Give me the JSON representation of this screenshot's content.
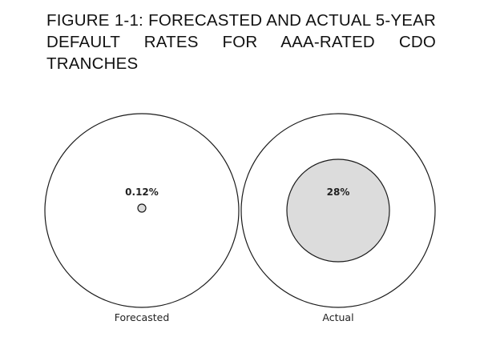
{
  "chart_data": {
    "type": "area-comparison",
    "title": "FIGURE 1-1: FORECASTED AND ACTUAL 5-YEAR DEFAULT RATES FOR AAA-RATED CDO TRANCHES",
    "unit": "%",
    "categories": [
      "Forecasted",
      "Actual"
    ],
    "values": [
      0.12,
      28
    ],
    "value_labels": [
      "0.12%",
      "28%"
    ],
    "fill_color": "#dcdcdc",
    "outline_color": "#1a1a1a"
  }
}
